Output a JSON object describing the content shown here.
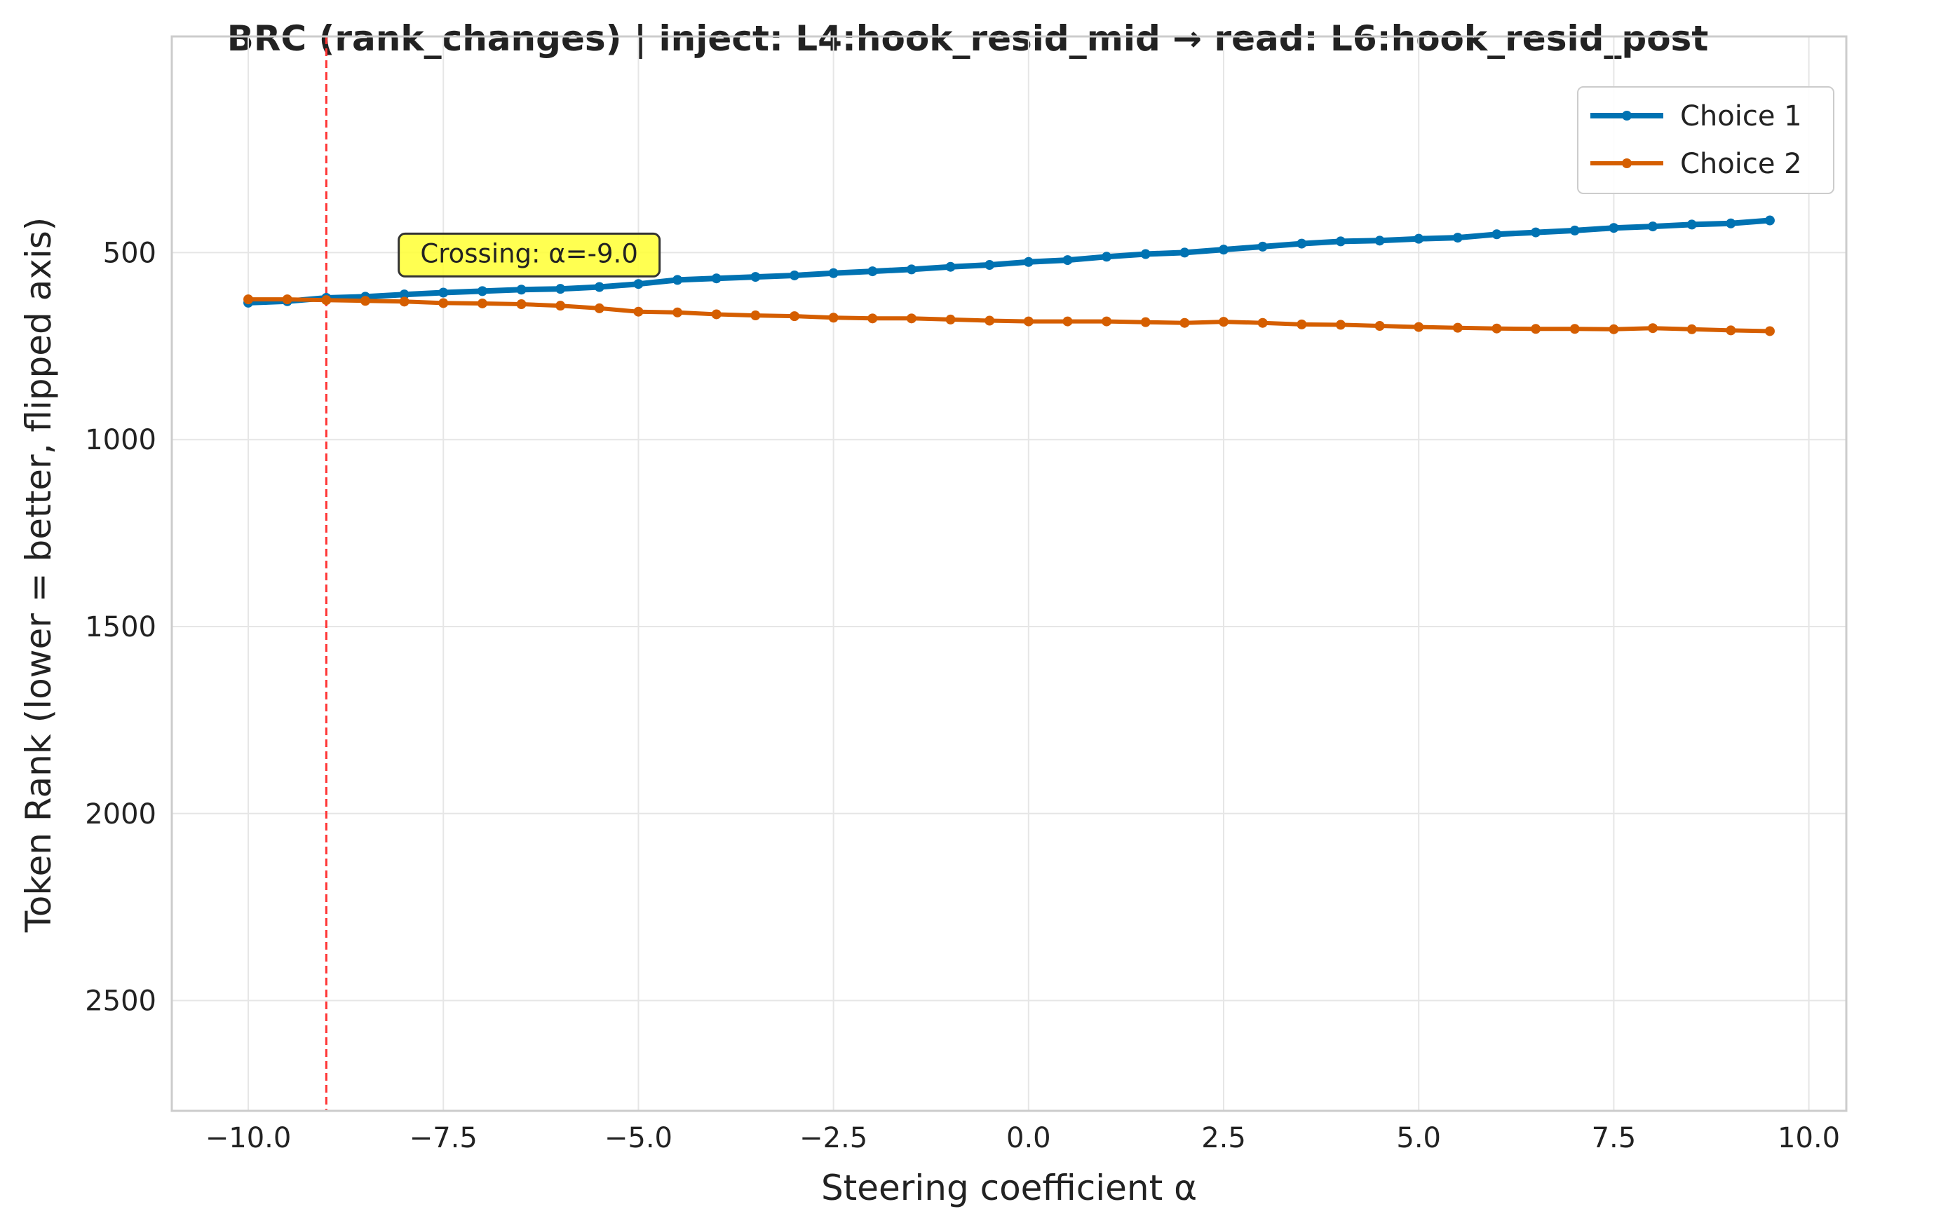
{
  "chart_data": {
    "type": "line",
    "title": "BRC (rank_changes) | inject: L4:hook_resid_mid → read: L6:hook_resid_post",
    "xlabel": "Steering coefficient α",
    "ylabel": "Token Rank (lower = better, flipped axis)",
    "xlim": [
      -10.98,
      10.48
    ],
    "ylim": [
      2795,
      -78
    ],
    "y_inverted": true,
    "x_ticks": [
      -10.0,
      -7.5,
      -5.0,
      -2.5,
      0.0,
      2.5,
      5.0,
      7.5,
      10.0
    ],
    "x_tick_labels": [
      "−10.0",
      "−7.5",
      "−5.0",
      "−2.5",
      "0.0",
      "2.5",
      "5.0",
      "7.5",
      "10.0"
    ],
    "y_ticks": [
      500,
      1000,
      1500,
      2000,
      2500
    ],
    "y_tick_labels": [
      "500",
      "1000",
      "1500",
      "2000",
      "2500"
    ],
    "grid": true,
    "legend_position": "top-right",
    "x": [
      -10.0,
      -9.5,
      -9.0,
      -8.5,
      -8.0,
      -7.5,
      -7.0,
      -6.5,
      -6.0,
      -5.5,
      -5.0,
      -4.5,
      -4.0,
      -3.5,
      -3.0,
      -2.5,
      -2.0,
      -1.5,
      -1.0,
      -0.5,
      0.0,
      0.5,
      1.0,
      1.5,
      2.0,
      2.5,
      3.0,
      3.5,
      4.0,
      4.5,
      5.0,
      5.5,
      6.0,
      6.5,
      7.0,
      7.5,
      8.0,
      8.5,
      9.0,
      9.5
    ],
    "series": [
      {
        "name": "Choice 1",
        "color": "#0072b2",
        "values": [
          634,
          630,
          621,
          618,
          612,
          607,
          603,
          599,
          597,
          592,
          584,
          573,
          569,
          565,
          561,
          555,
          550,
          545,
          538,
          533,
          525,
          520,
          511,
          504,
          500,
          492,
          484,
          476,
          470,
          468,
          463,
          460,
          451,
          446,
          441,
          434,
          430,
          425,
          422,
          414
        ]
      },
      {
        "name": "Choice 2",
        "color": "#d55e00",
        "values": [
          625,
          625,
          627,
          629,
          631,
          635,
          636,
          638,
          642,
          649,
          658,
          660,
          665,
          668,
          670,
          674,
          676,
          676,
          679,
          682,
          684,
          684,
          684,
          686,
          688,
          685,
          688,
          692,
          693,
          696,
          699,
          701,
          703,
          704,
          704,
          705,
          702,
          705,
          708,
          710
        ]
      }
    ],
    "crossing": {
      "x": -9.0,
      "line_color": "#ff3333",
      "label": "Crossing: α=-9.0",
      "label_x": -6.4,
      "label_y": 500,
      "box_color": "#ffff33"
    }
  }
}
